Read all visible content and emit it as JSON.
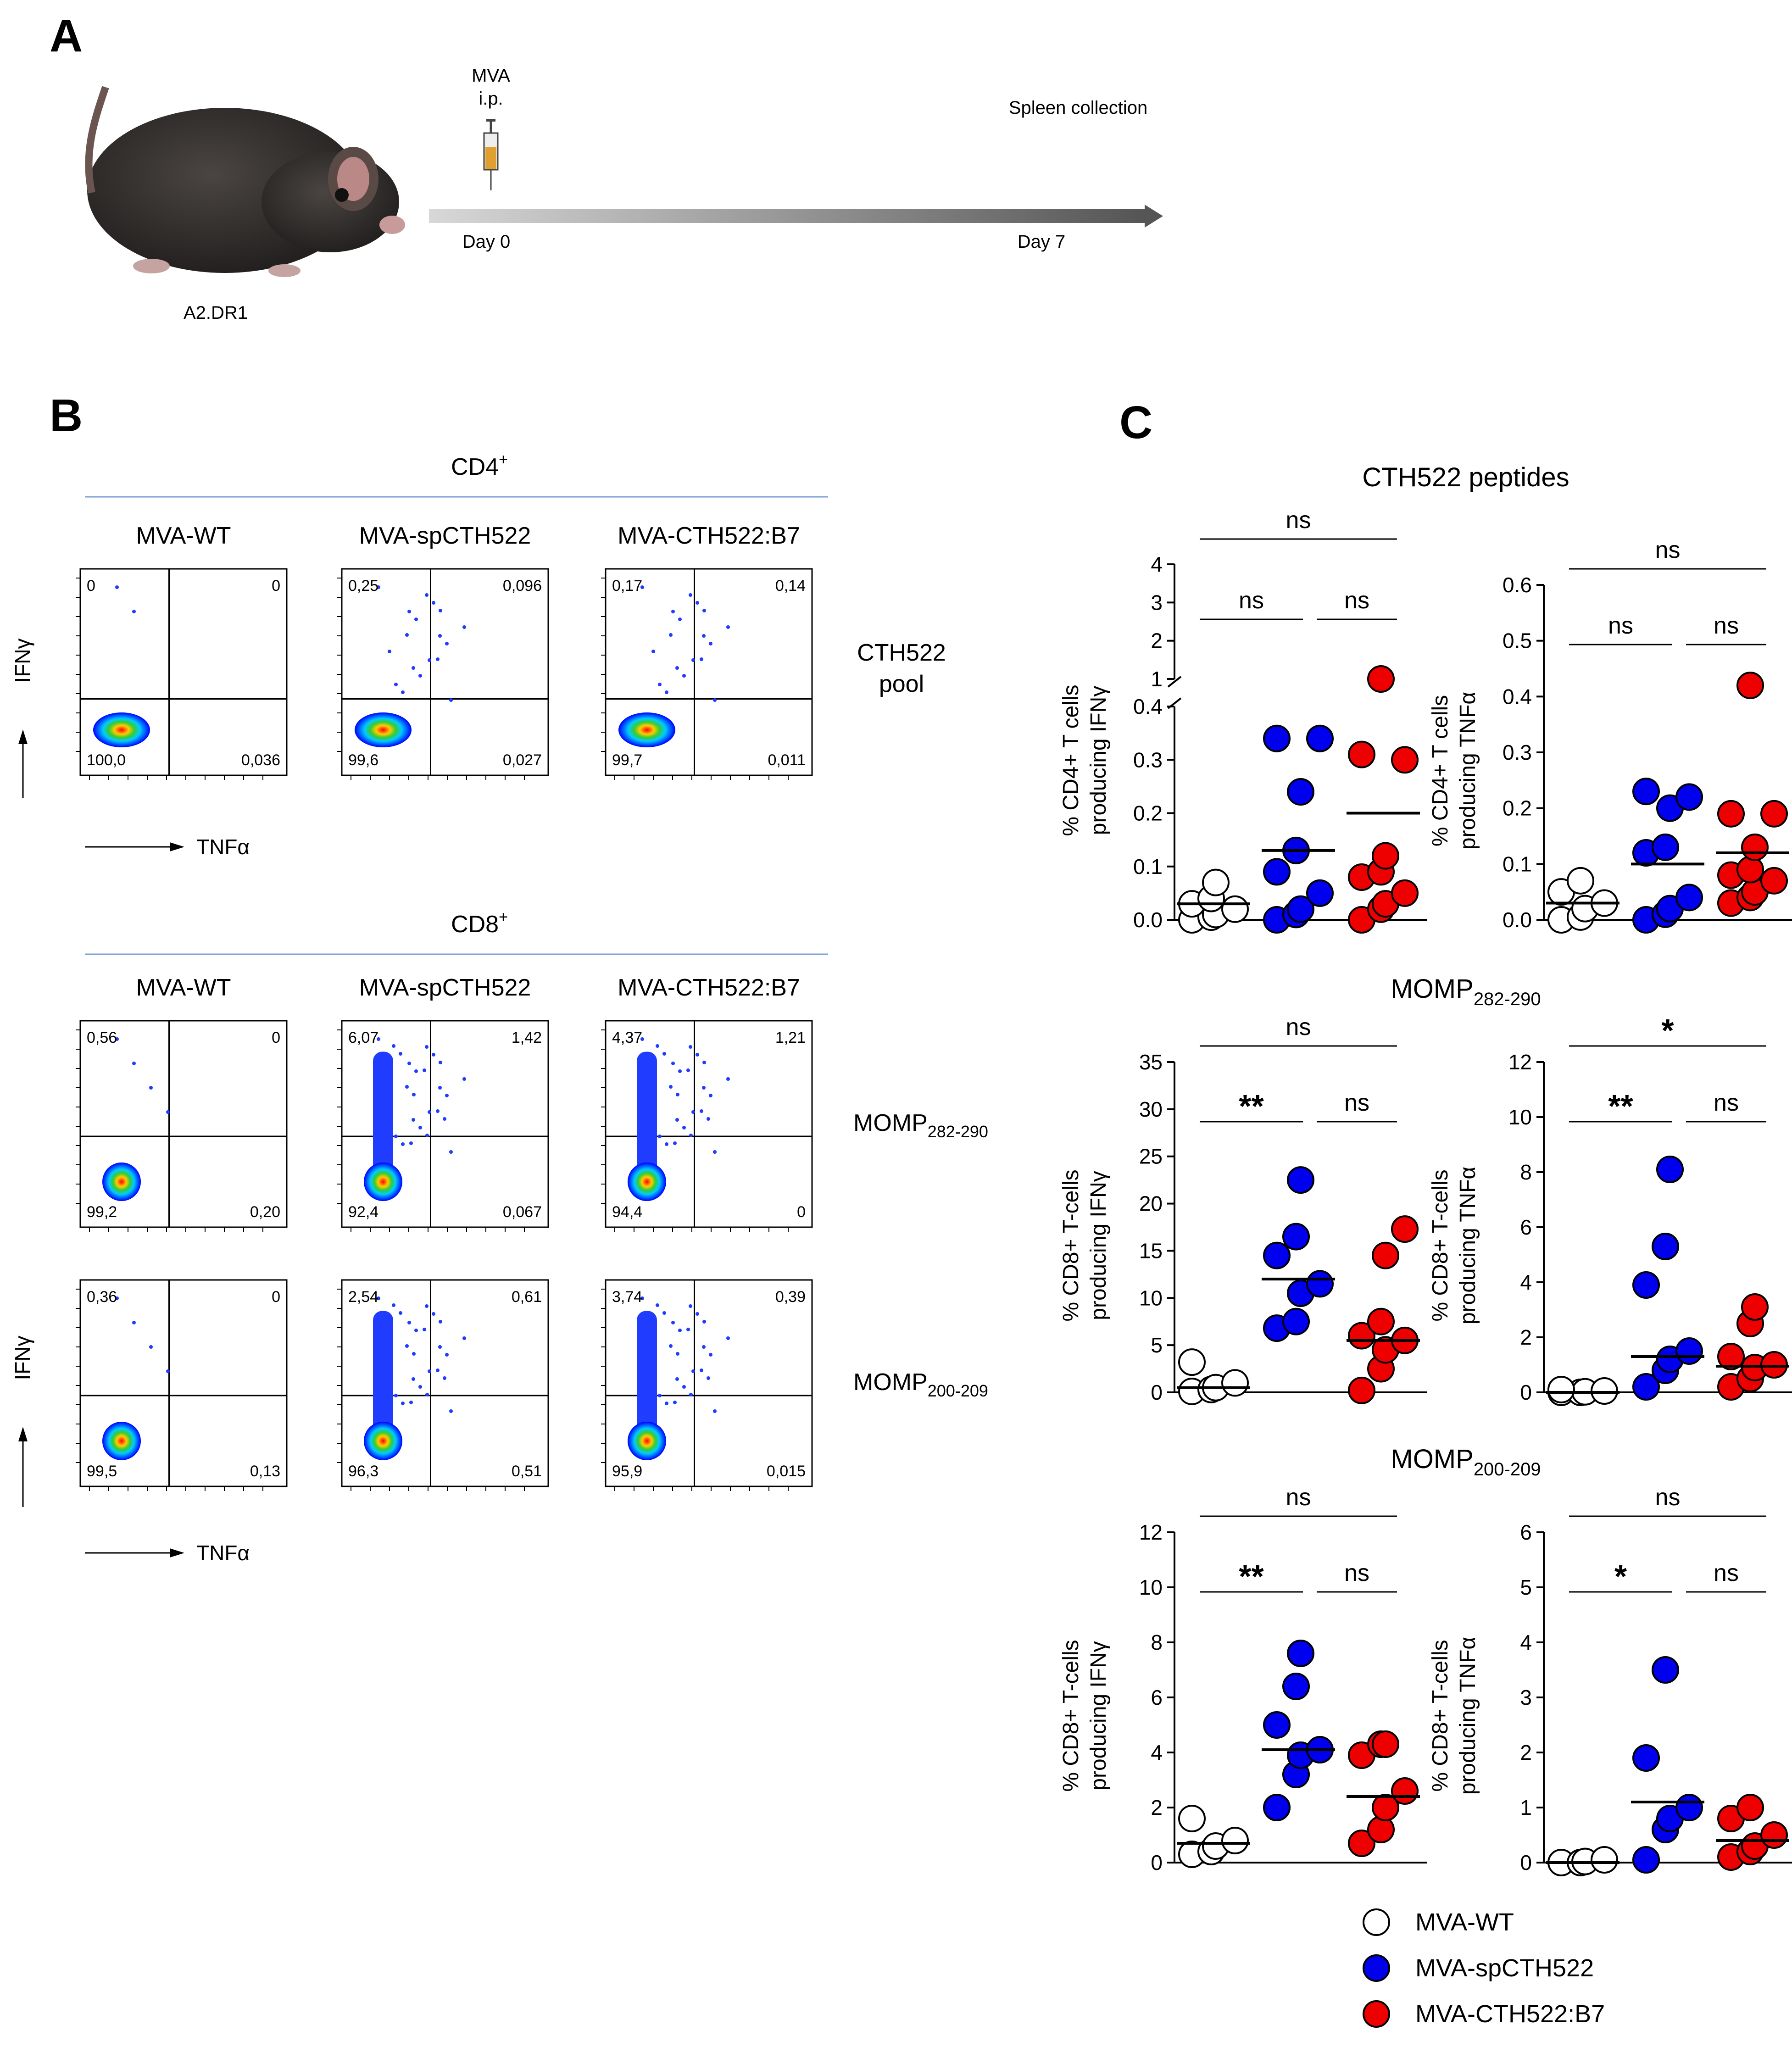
{
  "panel_a": {
    "letter": "A",
    "mouse_label": "A2.DR1",
    "injection": {
      "line1": "MVA",
      "line2": "i.p."
    },
    "day_start": "Day 0",
    "day_end": "Day 7",
    "endpoint": "Spleen collection"
  },
  "panel_b": {
    "letter": "B",
    "cd4": {
      "title": "CD4",
      "sup": "+"
    },
    "cd8": {
      "title": "CD8",
      "sup": "+"
    },
    "groups": [
      "MVA-WT",
      "MVA-spCTH522",
      "MVA-CTH522:B7"
    ],
    "y_axis": "IFNγ",
    "x_axis": "TNFα",
    "rows": [
      {
        "label": "CTH522",
        "label2": "pool",
        "quadrants": [
          [
            "0",
            "0",
            "100,0",
            "0,036"
          ],
          [
            "0,25",
            "0,096",
            "99,6",
            "0,027"
          ],
          [
            "0,17",
            "0,14",
            "99,7",
            "0,011"
          ]
        ]
      },
      {
        "label": "MOMP",
        "sub": "282-290",
        "quadrants": [
          [
            "0,56",
            "0",
            "99,2",
            "0,20"
          ],
          [
            "6,07",
            "1,42",
            "92,4",
            "0,067"
          ],
          [
            "4,37",
            "1,21",
            "94,4",
            "0"
          ]
        ]
      },
      {
        "label": "MOMP",
        "sub": "200-209",
        "quadrants": [
          [
            "0,36",
            "0",
            "99,5",
            "0,13"
          ],
          [
            "2,54",
            "0,61",
            "96,3",
            "0,51"
          ],
          [
            "3,74",
            "0,39",
            "95,9",
            "0,015"
          ]
        ]
      }
    ]
  },
  "panel_c": {
    "letter": "C",
    "row_titles": [
      {
        "text": "CTH522 peptides",
        "sub": ""
      },
      {
        "text": "MOMP",
        "sub": "282-290"
      },
      {
        "text": "MOMP",
        "sub": "200-209"
      }
    ],
    "legend": [
      {
        "label": "MVA-WT",
        "color": "#ffffff"
      },
      {
        "label": "MVA-spCTH522",
        "color": "#0000ee"
      },
      {
        "label": "MVA-CTH522:B7",
        "color": "#ee0000"
      }
    ]
  },
  "chart_data": [
    {
      "type": "scatter",
      "title": "CTH522 peptides",
      "ylabel_line1": "% CD4+ T cells",
      "ylabel_line2": "producing IFNγ",
      "broken_axis": true,
      "ylim_lower": [
        0,
        0.4
      ],
      "ylim_upper": [
        1,
        4
      ],
      "yticks_lower": [
        "0.0",
        "0.1",
        "0.2",
        "0.3",
        "0.4"
      ],
      "yticks_upper": [
        "1",
        "2",
        "3",
        "4"
      ],
      "groups": [
        "MVA-WT",
        "MVA-spCTH522",
        "MVA-CTH522:B7"
      ],
      "points": [
        [
          0.0,
          0.005,
          0.01,
          0.02,
          0.03,
          0.04,
          0.07
        ],
        [
          0.0,
          0.01,
          0.02,
          0.05,
          0.09,
          0.13,
          0.24,
          0.34,
          0.34
        ],
        [
          0.0,
          0.02,
          0.03,
          0.05,
          0.08,
          0.09,
          0.12,
          0.3,
          0.31,
          1.0
        ]
      ],
      "means": [
        0.03,
        0.13,
        0.2
      ],
      "stats": [
        {
          "pair": "WT-sp",
          "label": "ns"
        },
        {
          "pair": "sp-B7",
          "label": "ns"
        },
        {
          "pair": "WT-B7",
          "label": "ns"
        }
      ]
    },
    {
      "type": "scatter",
      "title": "CTH522 peptides",
      "ylabel_line1": "% CD4+ T cells",
      "ylabel_line2": "producing TNFα",
      "ylim": [
        0,
        0.6
      ],
      "yticks": [
        "0.0",
        "0.1",
        "0.2",
        "0.3",
        "0.4",
        "0.5",
        "0.6"
      ],
      "groups": [
        "MVA-WT",
        "MVA-spCTH522",
        "MVA-CTH522:B7"
      ],
      "points": [
        [
          0.0,
          0.005,
          0.02,
          0.03,
          0.05,
          0.07
        ],
        [
          0.0,
          0.01,
          0.02,
          0.04,
          0.12,
          0.13,
          0.2,
          0.22,
          0.23
        ],
        [
          0.03,
          0.04,
          0.05,
          0.07,
          0.08,
          0.09,
          0.13,
          0.19,
          0.19,
          0.42
        ]
      ],
      "means": [
        0.03,
        0.1,
        0.12
      ],
      "stats": [
        {
          "pair": "WT-sp",
          "label": "ns"
        },
        {
          "pair": "sp-B7",
          "label": "ns"
        },
        {
          "pair": "WT-B7",
          "label": "ns"
        }
      ]
    },
    {
      "type": "scatter",
      "title": "MOMP282-290",
      "ylabel_line1": "% CD8+ T-cells",
      "ylabel_line2": "producing IFNγ",
      "ylim": [
        0,
        35
      ],
      "yticks": [
        "0",
        "5",
        "10",
        "15",
        "20",
        "25",
        "30",
        "35"
      ],
      "groups": [
        "MVA-WT",
        "MVA-spCTH522",
        "MVA-CTH522:B7"
      ],
      "points": [
        [
          0.1,
          0.3,
          0.5,
          1.0,
          3.2
        ],
        [
          6.8,
          7.5,
          10.5,
          11.5,
          14.5,
          16.5,
          22.5
        ],
        [
          0.2,
          2.5,
          4.5,
          5.5,
          6.0,
          7.5,
          14.5,
          17.3
        ]
      ],
      "means": [
        0.5,
        12.0,
        5.5
      ],
      "stats": [
        {
          "pair": "WT-sp",
          "label": "**"
        },
        {
          "pair": "sp-B7",
          "label": "ns"
        },
        {
          "pair": "WT-B7",
          "label": "ns"
        }
      ]
    },
    {
      "type": "scatter",
      "title": "MOMP282-290",
      "ylabel_line1": "% CD8+ T-cells",
      "ylabel_line2": "producing TNFα",
      "ylim": [
        0,
        12
      ],
      "yticks": [
        "0",
        "2",
        "4",
        "6",
        "8",
        "10",
        "12"
      ],
      "groups": [
        "MVA-WT",
        "MVA-spCTH522",
        "MVA-CTH522:B7"
      ],
      "points": [
        [
          0.0,
          0.0,
          0.02,
          0.05,
          0.1
        ],
        [
          0.2,
          0.8,
          1.2,
          1.5,
          3.9,
          5.3,
          8.1
        ],
        [
          0.2,
          0.5,
          0.9,
          1.0,
          1.3,
          2.5,
          3.1
        ]
      ],
      "means": [
        0.0,
        1.3,
        0.95
      ],
      "stats": [
        {
          "pair": "WT-sp",
          "label": "**"
        },
        {
          "pair": "sp-B7",
          "label": "ns"
        },
        {
          "pair": "WT-B7",
          "label": "*"
        }
      ]
    },
    {
      "type": "scatter",
      "title": "MOMP200-209",
      "ylabel_line1": "% CD8+ T-cells",
      "ylabel_line2": "producing IFNγ",
      "ylim": [
        0,
        12
      ],
      "yticks": [
        "0",
        "2",
        "4",
        "6",
        "8",
        "10",
        "12"
      ],
      "groups": [
        "MVA-WT",
        "MVA-spCTH522",
        "MVA-CTH522:B7"
      ],
      "points": [
        [
          0.3,
          0.4,
          0.6,
          0.8,
          1.6
        ],
        [
          2.0,
          3.2,
          3.9,
          4.1,
          5.0,
          6.4,
          7.6
        ],
        [
          0.7,
          1.2,
          2.0,
          2.6,
          3.9,
          4.3,
          4.3
        ]
      ],
      "means": [
        0.7,
        4.1,
        2.4
      ],
      "stats": [
        {
          "pair": "WT-sp",
          "label": "**"
        },
        {
          "pair": "sp-B7",
          "label": "ns"
        },
        {
          "pair": "WT-B7",
          "label": "ns"
        }
      ]
    },
    {
      "type": "scatter",
      "title": "MOMP200-209",
      "ylabel_line1": "% CD8+ T-cells",
      "ylabel_line2": "producing TNFα",
      "ylim": [
        0,
        6
      ],
      "yticks": [
        "0",
        "1",
        "2",
        "3",
        "4",
        "5",
        "6"
      ],
      "groups": [
        "MVA-WT",
        "MVA-spCTH522",
        "MVA-CTH522:B7"
      ],
      "points": [
        [
          0.0,
          0.0,
          0.02,
          0.05
        ],
        [
          0.05,
          0.6,
          0.8,
          1.0,
          1.9,
          3.5
        ],
        [
          0.1,
          0.2,
          0.3,
          0.5,
          0.8,
          1.0
        ]
      ],
      "means": [
        0.0,
        1.1,
        0.4
      ],
      "stats": [
        {
          "pair": "WT-sp",
          "label": "*"
        },
        {
          "pair": "sp-B7",
          "label": "ns"
        },
        {
          "pair": "WT-B7",
          "label": "ns"
        }
      ]
    }
  ]
}
